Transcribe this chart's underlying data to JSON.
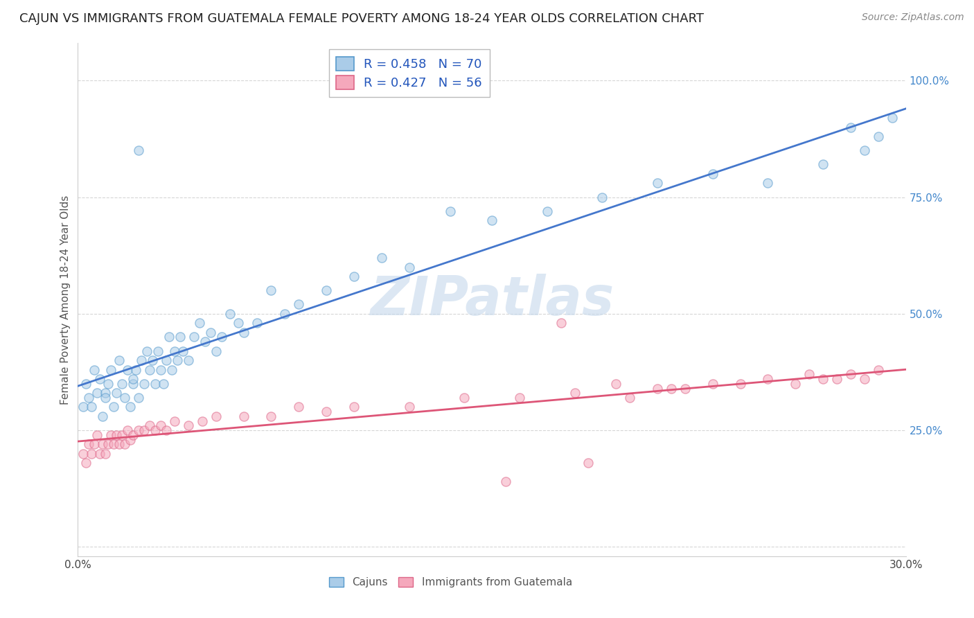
{
  "title": "CAJUN VS IMMIGRANTS FROM GUATEMALA FEMALE POVERTY AMONG 18-24 YEAR OLDS CORRELATION CHART",
  "source": "Source: ZipAtlas.com",
  "ylabel": "Female Poverty Among 18-24 Year Olds",
  "xlim": [
    0.0,
    0.3
  ],
  "ylim": [
    -0.02,
    1.08
  ],
  "xticks": [
    0.0,
    0.05,
    0.1,
    0.15,
    0.2,
    0.25,
    0.3
  ],
  "xticklabels": [
    "0.0%",
    "",
    "",
    "",
    "",
    "",
    "30.0%"
  ],
  "yticks": [
    0.0,
    0.25,
    0.5,
    0.75,
    1.0
  ],
  "yticklabels": [
    "",
    "25.0%",
    "50.0%",
    "75.0%",
    "100.0%"
  ],
  "legend_r1": "R = 0.458   N = 70",
  "legend_r2": "R = 0.427   N = 56",
  "cajun_color": "#aacce8",
  "cajun_edge_color": "#5599cc",
  "guatemala_color": "#f5a8bc",
  "guatemala_edge_color": "#dd6688",
  "line_blue": "#4477cc",
  "line_pink": "#dd5577",
  "watermark_text": "ZIPatlas",
  "cajun_x": [
    0.002,
    0.003,
    0.004,
    0.005,
    0.006,
    0.007,
    0.008,
    0.009,
    0.01,
    0.01,
    0.011,
    0.012,
    0.013,
    0.014,
    0.015,
    0.016,
    0.017,
    0.018,
    0.019,
    0.02,
    0.02,
    0.021,
    0.022,
    0.023,
    0.024,
    0.025,
    0.026,
    0.027,
    0.028,
    0.029,
    0.03,
    0.031,
    0.032,
    0.033,
    0.034,
    0.035,
    0.036,
    0.037,
    0.038,
    0.04,
    0.042,
    0.044,
    0.046,
    0.048,
    0.05,
    0.052,
    0.055,
    0.058,
    0.06,
    0.065,
    0.07,
    0.075,
    0.08,
    0.09,
    0.1,
    0.11,
    0.12,
    0.135,
    0.15,
    0.17,
    0.19,
    0.21,
    0.23,
    0.25,
    0.27,
    0.28,
    0.285,
    0.29,
    0.295,
    0.022
  ],
  "cajun_y": [
    0.3,
    0.35,
    0.32,
    0.3,
    0.38,
    0.33,
    0.36,
    0.28,
    0.33,
    0.32,
    0.35,
    0.38,
    0.3,
    0.33,
    0.4,
    0.35,
    0.32,
    0.38,
    0.3,
    0.35,
    0.36,
    0.38,
    0.32,
    0.4,
    0.35,
    0.42,
    0.38,
    0.4,
    0.35,
    0.42,
    0.38,
    0.35,
    0.4,
    0.45,
    0.38,
    0.42,
    0.4,
    0.45,
    0.42,
    0.4,
    0.45,
    0.48,
    0.44,
    0.46,
    0.42,
    0.45,
    0.5,
    0.48,
    0.46,
    0.48,
    0.55,
    0.5,
    0.52,
    0.55,
    0.58,
    0.62,
    0.6,
    0.72,
    0.7,
    0.72,
    0.75,
    0.78,
    0.8,
    0.78,
    0.82,
    0.9,
    0.85,
    0.88,
    0.92,
    0.85
  ],
  "guatemala_x": [
    0.002,
    0.003,
    0.004,
    0.005,
    0.006,
    0.007,
    0.008,
    0.009,
    0.01,
    0.011,
    0.012,
    0.013,
    0.014,
    0.015,
    0.016,
    0.017,
    0.018,
    0.019,
    0.02,
    0.022,
    0.024,
    0.026,
    0.028,
    0.03,
    0.032,
    0.035,
    0.04,
    0.045,
    0.05,
    0.06,
    0.07,
    0.08,
    0.09,
    0.1,
    0.12,
    0.14,
    0.16,
    0.18,
    0.2,
    0.21,
    0.22,
    0.23,
    0.24,
    0.25,
    0.26,
    0.27,
    0.275,
    0.28,
    0.285,
    0.29,
    0.175,
    0.185,
    0.195,
    0.155,
    0.215,
    0.265
  ],
  "guatemala_y": [
    0.2,
    0.18,
    0.22,
    0.2,
    0.22,
    0.24,
    0.2,
    0.22,
    0.2,
    0.22,
    0.24,
    0.22,
    0.24,
    0.22,
    0.24,
    0.22,
    0.25,
    0.23,
    0.24,
    0.25,
    0.25,
    0.26,
    0.25,
    0.26,
    0.25,
    0.27,
    0.26,
    0.27,
    0.28,
    0.28,
    0.28,
    0.3,
    0.29,
    0.3,
    0.3,
    0.32,
    0.32,
    0.33,
    0.32,
    0.34,
    0.34,
    0.35,
    0.35,
    0.36,
    0.35,
    0.36,
    0.36,
    0.37,
    0.36,
    0.38,
    0.48,
    0.18,
    0.35,
    0.14,
    0.34,
    0.37
  ],
  "marker_size": 90,
  "marker_alpha": 0.55,
  "title_fontsize": 13,
  "axis_label_fontsize": 11,
  "tick_fontsize": 11,
  "legend_fontsize": 13,
  "source_fontsize": 10
}
